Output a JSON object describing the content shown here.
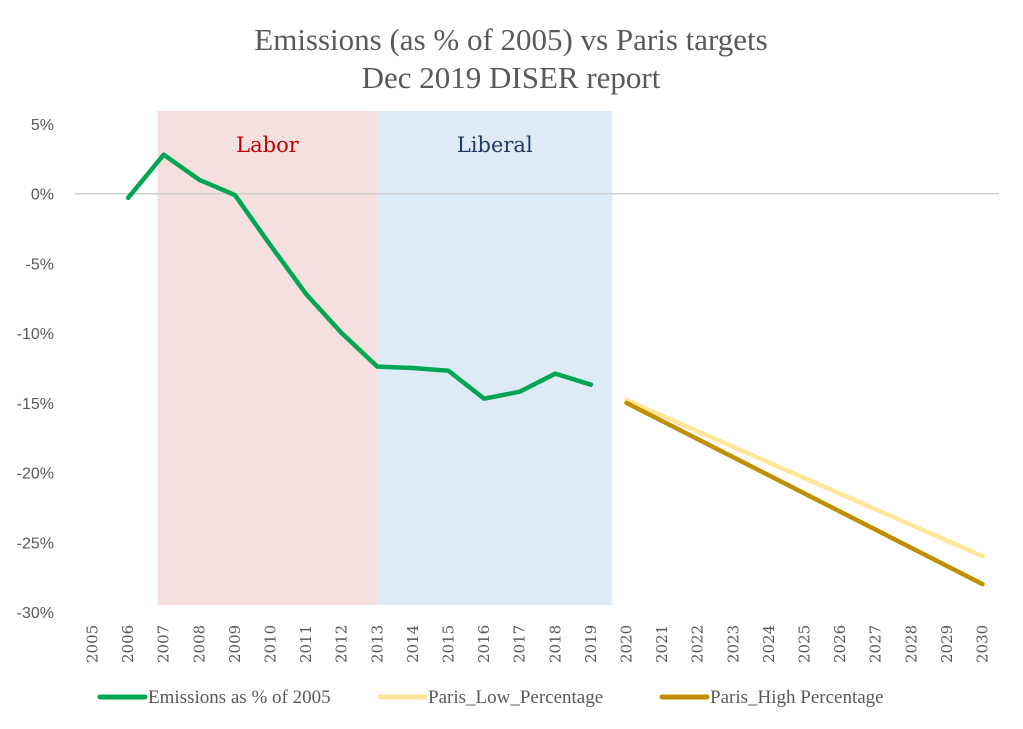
{
  "chart_data": {
    "type": "line",
    "title": "Emissions (as % of 2005) vs Paris targets",
    "subtitle": "Dec 2019 DISER report",
    "xlabel": "",
    "ylabel": "",
    "ylim": [
      -30,
      5
    ],
    "yticks": [
      5,
      0,
      -5,
      -10,
      -15,
      -20,
      -25,
      -30
    ],
    "ytick_labels": [
      "5%",
      "0%",
      "-5%",
      "-10%",
      "-15%",
      "-20%",
      "-25%",
      "-30%"
    ],
    "x": [
      2005,
      2006,
      2007,
      2008,
      2009,
      2010,
      2011,
      2012,
      2013,
      2014,
      2015,
      2016,
      2017,
      2018,
      2019,
      2020,
      2021,
      2022,
      2023,
      2024,
      2025,
      2026,
      2027,
      2028,
      2029,
      2030
    ],
    "xtick_labels": [
      "2005",
      "2006",
      "2007",
      "2008",
      "2009",
      "2010",
      "2011",
      "2012",
      "2013",
      "2014",
      "2015",
      "2016",
      "2017",
      "2018",
      "2019",
      "2020",
      "2021",
      "2022",
      "2023",
      "2024",
      "2025",
      "2026",
      "2027",
      "2028",
      "2029",
      "2030"
    ],
    "grid": false,
    "zero_line": true,
    "legend_position": "bottom",
    "series": [
      {
        "name": "Emissions as % of 2005",
        "color": "#00A650",
        "x": [
          2006,
          2007,
          2008,
          2009,
          2010,
          2011,
          2012,
          2013,
          2014,
          2015,
          2016,
          2017,
          2018,
          2019
        ],
        "values": [
          -0.3,
          2.8,
          1.0,
          -0.1,
          -3.7,
          -7.2,
          -10.0,
          -12.4,
          -12.5,
          -12.7,
          -14.7,
          -14.2,
          -12.9,
          -13.7
        ]
      },
      {
        "name": "Paris_Low_Percentage",
        "color": "#FFE699",
        "x": [
          2020,
          2030
        ],
        "values": [
          -14.8,
          -26.0
        ]
      },
      {
        "name": "Paris_High Percentage",
        "color": "#BF8F00",
        "x": [
          2020,
          2030
        ],
        "values": [
          -15.0,
          -28.0
        ]
      }
    ],
    "bands": [
      {
        "label": "Labor",
        "x_start": 2006.83,
        "x_end": 2013.0,
        "color": "#F5DFDF",
        "label_color": "#C00000"
      },
      {
        "label": "Liberal",
        "x_start": 2013.0,
        "x_end": 2019.6,
        "color": "#DEEBF7",
        "label_color": "#1F3864"
      }
    ]
  }
}
